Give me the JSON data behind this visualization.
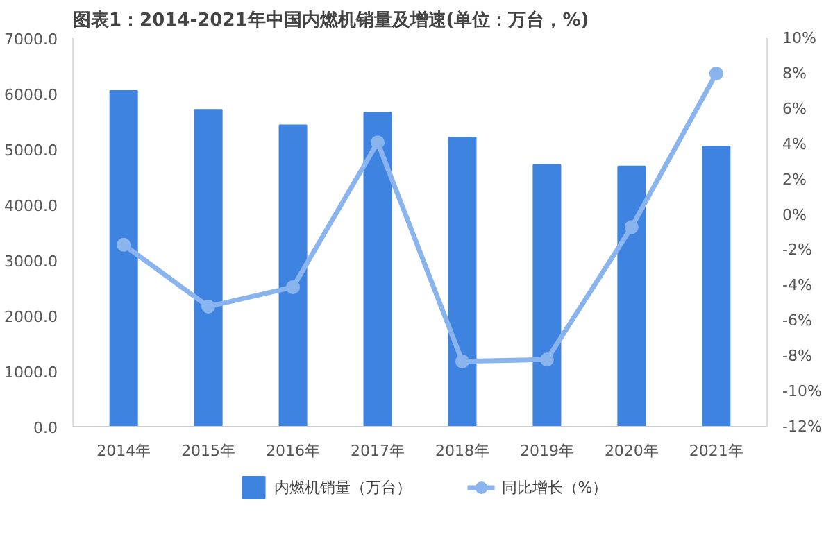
{
  "chart_data": {
    "type": "bar",
    "title": "图表1：2014-2021年中国内燃机销量及增速(单位：万台，%)",
    "categories": [
      "2014年",
      "2015年",
      "2016年",
      "2017年",
      "2018年",
      "2019年",
      "2020年",
      "2021年"
    ],
    "series": [
      {
        "name": "内燃机销量（万台）",
        "color": "#3f83e0",
        "values": [
          6050,
          5710,
          5430,
          5660,
          5210,
          4720,
          4690,
          5050
        ]
      },
      {
        "name": "同比增长（%）",
        "type": "line",
        "axis": "y2",
        "color": "#8ab4ee",
        "marker": "circle",
        "values": [
          -1.7,
          -5.2,
          -4.1,
          4.1,
          -8.3,
          -8.2,
          -0.7,
          8.0
        ]
      }
    ],
    "ylim": [
      0,
      7000
    ],
    "yticks": [
      {
        "value": 0,
        "label": "0.0"
      },
      {
        "value": 1000,
        "label": "1000.0"
      },
      {
        "value": 2000,
        "label": "2000.0"
      },
      {
        "value": 3000,
        "label": "3000.0"
      },
      {
        "value": 4000,
        "label": "4000.0"
      },
      {
        "value": 5000,
        "label": "5000.0"
      },
      {
        "value": 6000,
        "label": "6000.0"
      },
      {
        "value": 7000,
        "label": "7000.0"
      }
    ],
    "y2lim": [
      -12,
      10
    ],
    "y2ticks": [
      {
        "value": -12,
        "label": "-12%"
      },
      {
        "value": -10,
        "label": "-10%"
      },
      {
        "value": -8,
        "label": "-8%"
      },
      {
        "value": -6,
        "label": "-6%"
      },
      {
        "value": -4,
        "label": "-4%"
      },
      {
        "value": -2,
        "label": "-2%"
      },
      {
        "value": 0,
        "label": "0%"
      },
      {
        "value": 2,
        "label": "2%"
      },
      {
        "value": 4,
        "label": "4%"
      },
      {
        "value": 6,
        "label": "6%"
      },
      {
        "value": 8,
        "label": "8%"
      },
      {
        "value": 10,
        "label": "10%"
      }
    ],
    "grid": false,
    "legend": "bottom"
  }
}
